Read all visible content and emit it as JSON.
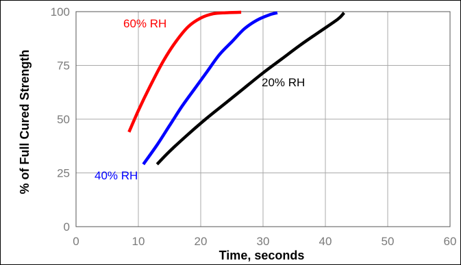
{
  "chart_data": {
    "type": "line",
    "title": "",
    "xlabel": "Time, seconds",
    "ylabel": "% of Full Cured Strength",
    "xlim": [
      0,
      60
    ],
    "ylim": [
      0,
      100
    ],
    "x_ticks": [
      0,
      10,
      20,
      30,
      40,
      50,
      60
    ],
    "y_ticks": [
      0,
      25,
      50,
      75,
      100
    ],
    "grid": true,
    "legend": "none",
    "series": [
      {
        "name": "60% RH",
        "color": "#ff0000",
        "x": [
          8.5,
          10,
          12,
          14,
          16,
          18,
          20,
          22,
          24,
          26.5
        ],
        "y": [
          44,
          54,
          66,
          77,
          86,
          93,
          97,
          99,
          99.5,
          99.7
        ]
      },
      {
        "name": "40% RH",
        "color": "#0000ff",
        "x": [
          10.8,
          13,
          15,
          17,
          19,
          21,
          23,
          25,
          27,
          29,
          31,
          32.3
        ],
        "y": [
          29,
          38,
          47,
          56,
          64,
          72,
          80,
          86,
          92,
          96,
          98.5,
          99.5
        ]
      },
      {
        "name": "20% RH",
        "color": "#000000",
        "x": [
          13,
          15,
          18,
          21,
          24,
          27,
          30,
          33,
          36,
          39,
          42,
          43
        ],
        "y": [
          29,
          35,
          43,
          50.5,
          57.5,
          64.5,
          71.5,
          78,
          84.5,
          90.5,
          96.5,
          99.5
        ]
      }
    ]
  }
}
